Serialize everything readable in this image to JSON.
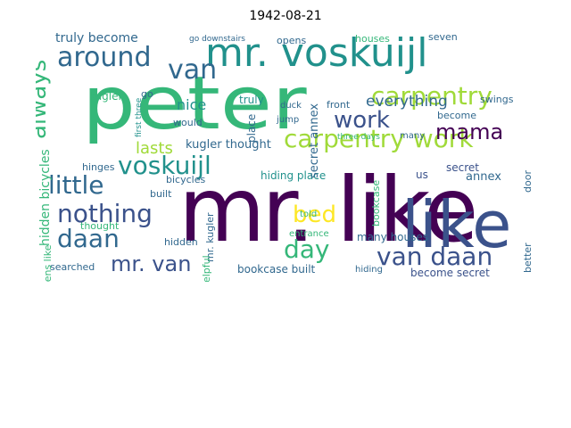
{
  "title": "1942-08-21",
  "palette": {
    "dark_purple": "#440154",
    "indigo": "#3b528b",
    "blue": "#31688e",
    "teal": "#21918c",
    "green": "#35b779",
    "yellow_green": "#a0da39",
    "yellow": "#fde725"
  },
  "words": [
    {
      "text": "peter",
      "color": "#35b779"
    },
    {
      "text": "mr. like",
      "color": "#440154"
    },
    {
      "text": "mr. voskuijl",
      "color": "#21918c"
    },
    {
      "text": "like",
      "color": "#3b528b"
    },
    {
      "text": "carpentry work",
      "color": "#a0da39"
    },
    {
      "text": "carpentry",
      "color": "#a0da39"
    },
    {
      "text": "voskuijl",
      "color": "#21918c"
    },
    {
      "text": "around",
      "color": "#31688e"
    },
    {
      "text": "van",
      "color": "#31688e"
    },
    {
      "text": "work",
      "color": "#3b528b"
    },
    {
      "text": "mama",
      "color": "#440154"
    },
    {
      "text": "always",
      "color": "#35b779"
    },
    {
      "text": "little",
      "color": "#31688e"
    },
    {
      "text": "nothing",
      "color": "#3b528b"
    },
    {
      "text": "daan",
      "color": "#31688e"
    },
    {
      "text": "bed",
      "color": "#fde725"
    },
    {
      "text": "day",
      "color": "#35b779"
    },
    {
      "text": "van daan",
      "color": "#3b528b"
    },
    {
      "text": "mr. van",
      "color": "#3b528b"
    },
    {
      "text": "everything",
      "color": "#31688e"
    },
    {
      "text": "nice",
      "color": "#21918c"
    },
    {
      "text": "lasts",
      "color": "#a0da39"
    },
    {
      "text": "truly become",
      "color": "#31688e"
    },
    {
      "text": "kugler thought",
      "color": "#31688e"
    },
    {
      "text": "hidden bicycles",
      "color": "#35b779"
    },
    {
      "text": "secret annex",
      "color": "#31688e"
    },
    {
      "text": "many houses",
      "color": "#31688e"
    },
    {
      "text": "become secret",
      "color": "#31688e"
    },
    {
      "text": "bookcase built",
      "color": "#3b528b"
    },
    {
      "text": "hiding place",
      "color": "#21918c"
    },
    {
      "text": "kugler",
      "color": "#35b779"
    },
    {
      "text": "truly",
      "color": "#21918c"
    },
    {
      "text": "go",
      "color": "#31688e"
    },
    {
      "text": "would",
      "color": "#31688e"
    },
    {
      "text": "place",
      "color": "#31688e"
    },
    {
      "text": "front",
      "color": "#31688e"
    },
    {
      "text": "swings",
      "color": "#31688e"
    },
    {
      "text": "secret",
      "color": "#3b528b"
    },
    {
      "text": "annex",
      "color": "#31688e"
    },
    {
      "text": "become",
      "color": "#31688e"
    },
    {
      "text": "built",
      "color": "#31688e"
    },
    {
      "text": "hinges",
      "color": "#31688e"
    },
    {
      "text": "bicycles",
      "color": "#31688e"
    },
    {
      "text": "hidden",
      "color": "#31688e"
    },
    {
      "text": "searched",
      "color": "#31688e"
    },
    {
      "text": "thought",
      "color": "#35b779"
    },
    {
      "text": "opens like",
      "color": "#35b779"
    },
    {
      "text": "opens",
      "color": "#31688e"
    },
    {
      "text": "houses",
      "color": "#35b779"
    },
    {
      "text": "seven",
      "color": "#31688e"
    },
    {
      "text": "duck",
      "color": "#31688e"
    },
    {
      "text": "jump",
      "color": "#31688e"
    },
    {
      "text": "mr. kugler",
      "color": "#31688e"
    },
    {
      "text": "told",
      "color": "#35b779"
    },
    {
      "text": "entrance",
      "color": "#35b779"
    },
    {
      "text": "hiding",
      "color": "#31688e"
    },
    {
      "text": "helpful",
      "color": "#35b779"
    },
    {
      "text": "bookcase",
      "color": "#35b779"
    },
    {
      "text": "better",
      "color": "#31688e"
    },
    {
      "text": "door",
      "color": "#31688e"
    },
    {
      "text": "many",
      "color": "#31688e"
    },
    {
      "text": "three days",
      "color": "#35b779"
    },
    {
      "text": "us",
      "color": "#3b528b"
    },
    {
      "text": "go downstairs",
      "color": "#31688e"
    },
    {
      "text": "first three",
      "color": "#21918c"
    }
  ]
}
